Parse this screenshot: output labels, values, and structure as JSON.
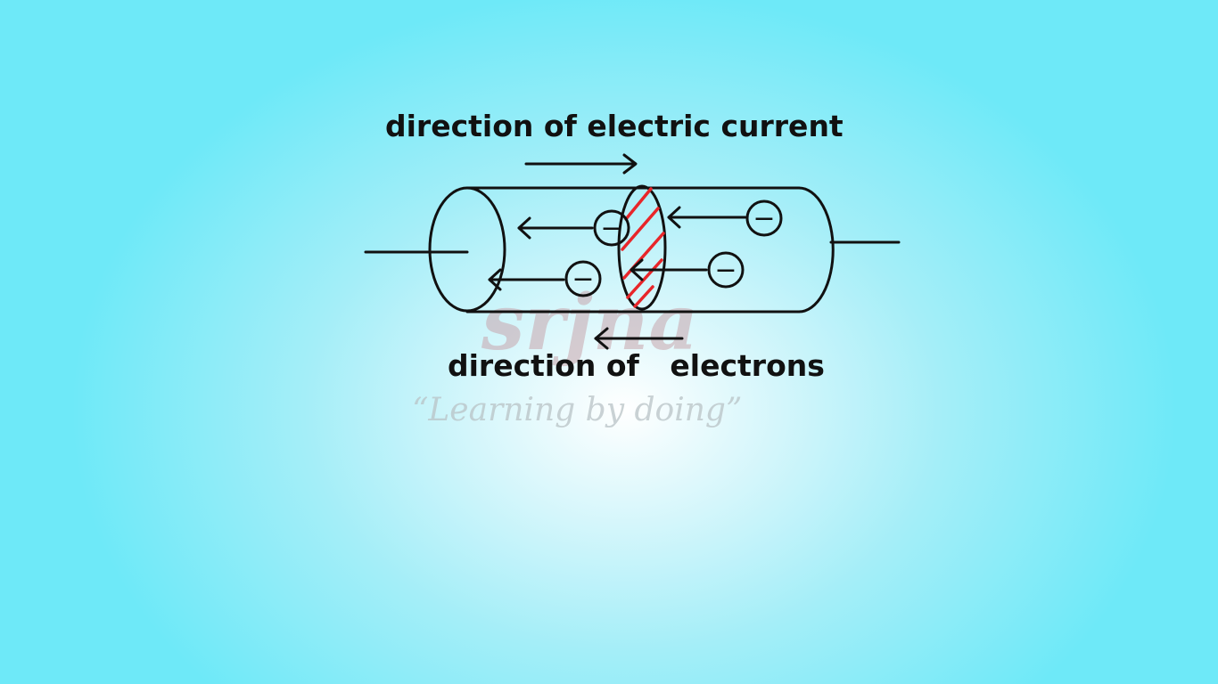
{
  "labels": {
    "current": "direction of electric current",
    "electrons": "direction of   electrons"
  },
  "watermark": {
    "logo": "srjna",
    "tagline": "“Learning by doing”"
  },
  "colors": {
    "ink": "#111111",
    "hatch": "#e8262a"
  },
  "electrons": [
    {
      "symbol": "−"
    },
    {
      "symbol": "−"
    },
    {
      "symbol": "−"
    },
    {
      "symbol": "−"
    }
  ]
}
